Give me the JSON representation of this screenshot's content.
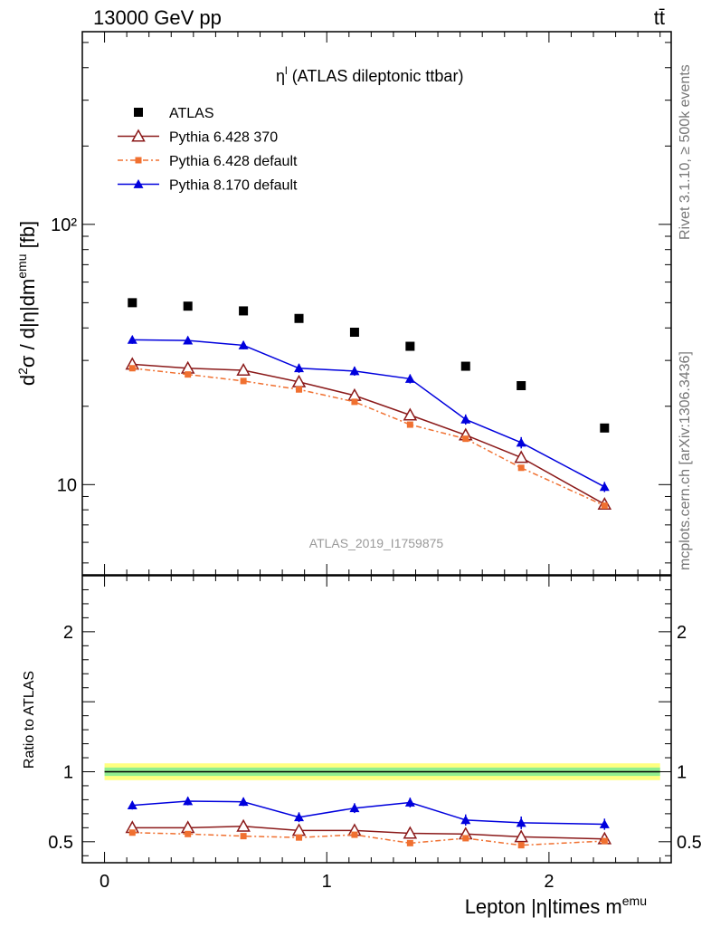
{
  "header": {
    "energy_label": "13000 GeV pp",
    "process_label": "tt̄"
  },
  "side_labels": {
    "rivet": "Rivet 3.1.10, ≥ 500k events",
    "mcplots": "mcplots.cern.ch [arXiv:1306.3436]"
  },
  "watermark": "ATLAS_2019_I1759875",
  "chart_data": {
    "type": "scatter",
    "title": "η^l (ATLAS dileptonic ttbar)",
    "title_main": "η",
    "title_sup": "l",
    "title_rest": " (ATLAS dileptonic ttbar)",
    "xlabel": "Lepton |η|times m^emu",
    "xlabel_main": "Lepton |η|times m",
    "xlabel_sup": "emu",
    "ylabel": "d²σ / d|η|dm^emu [fb]",
    "ratio_ylabel": "Ratio to ATLAS",
    "xlim": [
      -0.1,
      2.55
    ],
    "ylim": [
      4.5,
      550
    ],
    "yscale": "log",
    "ratio_ylim": [
      0.35,
      2.4
    ],
    "x_ticks": [
      0,
      1,
      2
    ],
    "x_tick_labels": [
      "0",
      "1",
      "2"
    ],
    "y_ticks": [
      10,
      100
    ],
    "y_tick_labels": [
      "10",
      "10²"
    ],
    "ratio_y_ticks": [
      0.5,
      1,
      2
    ],
    "ratio_y_tick_labels": [
      "0.5",
      "1",
      "2"
    ],
    "legend_position": "top-left",
    "x": [
      0.125,
      0.375,
      0.625,
      0.875,
      1.125,
      1.375,
      1.625,
      1.875,
      2.25
    ],
    "reference": {
      "name": "ATLAS",
      "color": "#000000",
      "marker": "square",
      "values": [
        50,
        48.5,
        46.5,
        43.5,
        38.5,
        34,
        28.5,
        24,
        16.5
      ],
      "ratio_band_inner": 0.03,
      "ratio_band_outer": 0.06
    },
    "series": [
      {
        "name": "Pythia 6.428 370",
        "color": "#8b1a1a",
        "marker": "triangle-open",
        "line": "solid",
        "values": [
          29,
          28,
          27.5,
          24.8,
          22,
          18.5,
          15.5,
          12.7,
          8.4
        ],
        "ratio": [
          0.6,
          0.6,
          0.61,
          0.58,
          0.58,
          0.56,
          0.555,
          0.535,
          0.52
        ],
        "ratio_err": [
          0.012,
          0.012,
          0.012,
          0.012,
          0.012,
          0.012,
          0.012,
          0.012,
          0.012
        ]
      },
      {
        "name": "Pythia 6.428 default",
        "color": "#f07030",
        "marker": "square-small",
        "line": "dashdot",
        "values": [
          28,
          26.5,
          25,
          23.2,
          20.8,
          17,
          15,
          11.6,
          8.3
        ],
        "ratio": [
          0.565,
          0.555,
          0.54,
          0.53,
          0.55,
          0.49,
          0.525,
          0.475,
          0.505
        ],
        "ratio_err": [
          0.01,
          0.01,
          0.01,
          0.01,
          0.01,
          0.01,
          0.01,
          0.01,
          0.01
        ]
      },
      {
        "name": "Pythia 8.170 default",
        "color": "#0000dd",
        "marker": "triangle-filled",
        "line": "solid",
        "values": [
          36,
          35.8,
          34.3,
          28,
          27.3,
          25.5,
          17.8,
          14.5,
          9.8
        ],
        "ratio": [
          0.76,
          0.79,
          0.785,
          0.675,
          0.74,
          0.78,
          0.655,
          0.635,
          0.625
        ],
        "ratio_err": [
          0.03,
          0.03,
          0.03,
          0.035,
          0.035,
          0.035,
          0.04,
          0.045,
          0.04
        ],
        "main_err": [
          0.035,
          0.035,
          0.035,
          0.04,
          0.04,
          0.04,
          0.045,
          0.05,
          0.045
        ]
      }
    ]
  }
}
